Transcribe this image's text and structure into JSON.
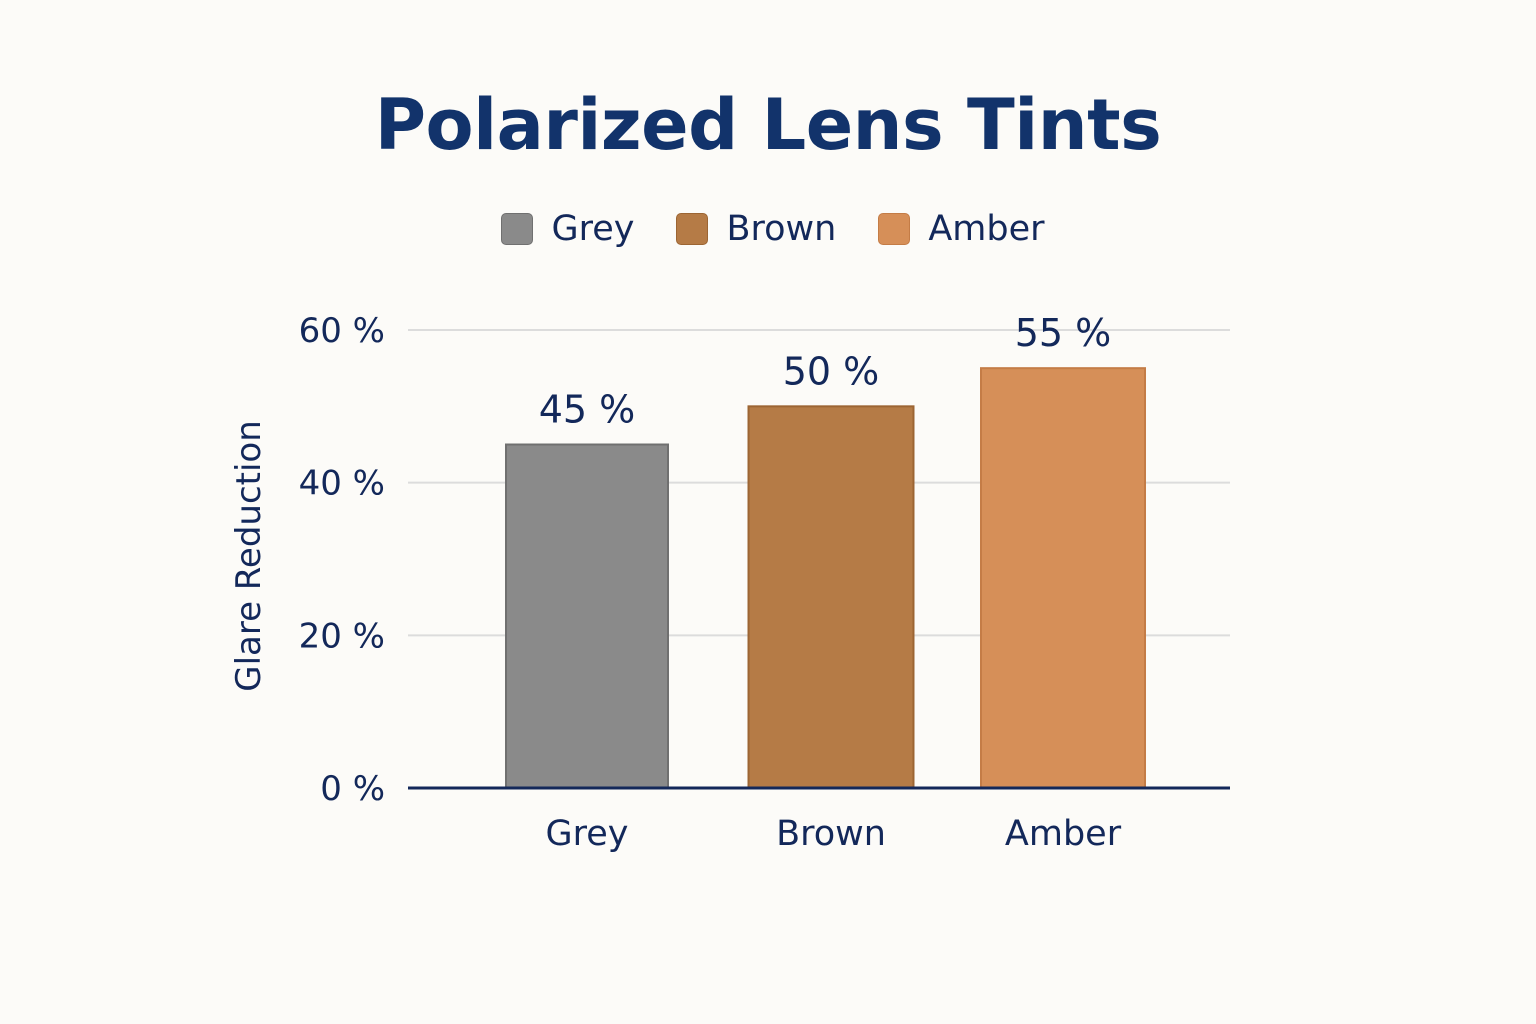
{
  "chart_data": {
    "type": "bar",
    "title": "Polarized Lens Tints",
    "xlabel": "",
    "ylabel": "Glare Reduction",
    "categories": [
      "Grey",
      "Brown",
      "Amber"
    ],
    "values": [
      45,
      50,
      55
    ],
    "value_labels": [
      "45 %",
      "50 %",
      "55 %"
    ],
    "ylim": [
      0,
      60
    ],
    "yticks": [
      {
        "value": 0,
        "label": "0 %"
      },
      {
        "value": 20,
        "label": "20 %"
      },
      {
        "value": 40,
        "label": "40 %"
      },
      {
        "value": 60,
        "label": "60 %"
      }
    ],
    "grid": true,
    "legend_position": "top-center",
    "legend": [
      {
        "label": "Grey",
        "color": "#8a8a8a"
      },
      {
        "label": "Brown",
        "color": "#b57b46"
      },
      {
        "label": "Amber",
        "color": "#d68f58"
      }
    ],
    "colors": [
      "#8a8a8a",
      "#b57b46",
      "#d68f58"
    ],
    "bar_border_colors": [
      "#707070",
      "#9c6533",
      "#c47c46"
    ]
  }
}
